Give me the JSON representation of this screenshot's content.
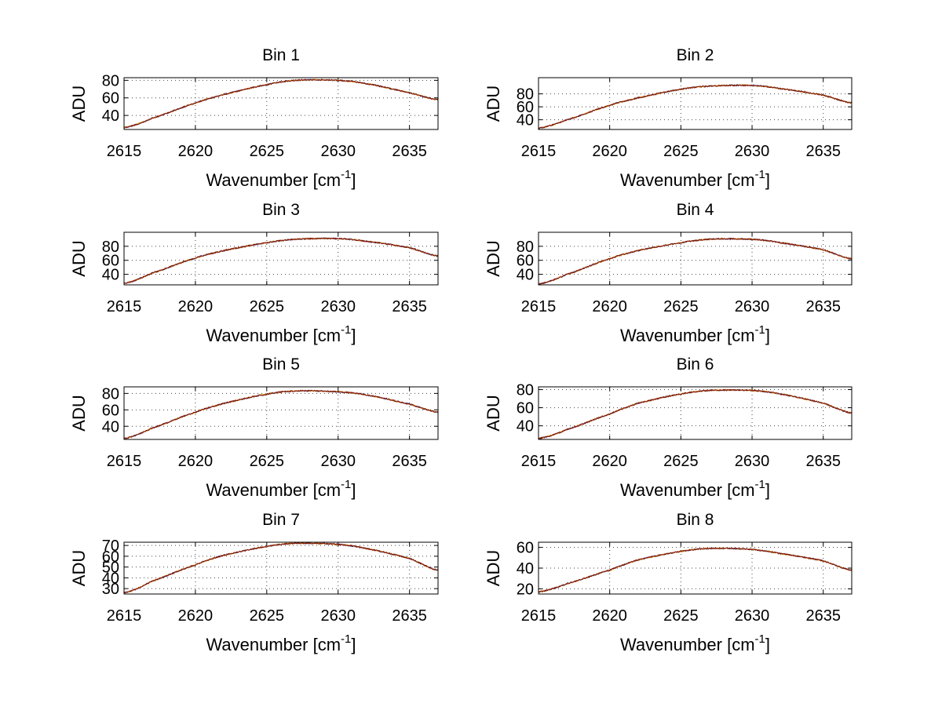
{
  "chart_data": [
    {
      "type": "line",
      "title": "Bin 1",
      "xlabel": "Wavenumber [cm",
      "xlabel_sup": "-1",
      "xlabel_end": "]",
      "ylabel": "ADU",
      "xlim": [
        2615,
        2637
      ],
      "ylim": [
        24,
        83
      ],
      "xticks": [
        2615,
        2620,
        2625,
        2630,
        2635
      ],
      "yticks": [
        40,
        60,
        80
      ],
      "curve": {
        "x": [
          2615,
          2617,
          2620,
          2622,
          2625,
          2627,
          2630,
          2632,
          2635,
          2637
        ],
        "y": [
          26,
          37,
          54,
          64,
          75,
          80,
          80,
          76,
          66,
          58
        ]
      }
    },
    {
      "type": "line",
      "title": "Bin 2",
      "xlabel": "Wavenumber [cm",
      "xlabel_sup": "-1",
      "xlabel_end": "]",
      "ylabel": "ADU",
      "xlim": [
        2615,
        2637
      ],
      "ylim": [
        25,
        105
      ],
      "xticks": [
        2615,
        2620,
        2625,
        2630,
        2635
      ],
      "yticks": [
        40,
        60,
        80
      ],
      "curve": {
        "x": [
          2615,
          2617,
          2620,
          2622,
          2625,
          2627,
          2630,
          2632,
          2635,
          2637
        ],
        "y": [
          27,
          40,
          62,
          74,
          87,
          92,
          93,
          88,
          78,
          66
        ]
      }
    },
    {
      "type": "line",
      "title": "Bin 3",
      "xlabel": "Wavenumber [cm",
      "xlabel_sup": "-1",
      "xlabel_end": "]",
      "ylabel": "ADU",
      "xlim": [
        2615,
        2637
      ],
      "ylim": [
        25,
        100
      ],
      "xticks": [
        2615,
        2620,
        2625,
        2630,
        2635
      ],
      "yticks": [
        40,
        60,
        80
      ],
      "curve": {
        "x": [
          2615,
          2617,
          2620,
          2622,
          2625,
          2627,
          2630,
          2632,
          2635,
          2637
        ],
        "y": [
          27,
          42,
          63,
          74,
          85,
          90,
          91,
          87,
          78,
          66
        ]
      }
    },
    {
      "type": "line",
      "title": "Bin 4",
      "xlabel": "Wavenumber [cm",
      "xlabel_sup": "-1",
      "xlabel_end": "]",
      "ylabel": "ADU",
      "xlim": [
        2615,
        2637
      ],
      "ylim": [
        25,
        100
      ],
      "xticks": [
        2615,
        2620,
        2625,
        2630,
        2635
      ],
      "yticks": [
        40,
        60,
        80
      ],
      "curve": {
        "x": [
          2615,
          2617,
          2620,
          2622,
          2625,
          2627,
          2630,
          2632,
          2635,
          2637
        ],
        "y": [
          26,
          40,
          62,
          74,
          85,
          90,
          90,
          85,
          75,
          62
        ]
      }
    },
    {
      "type": "line",
      "title": "Bin 5",
      "xlabel": "Wavenumber [cm",
      "xlabel_sup": "-1",
      "xlabel_end": "]",
      "ylabel": "ADU",
      "xlim": [
        2615,
        2637
      ],
      "ylim": [
        24,
        88
      ],
      "xticks": [
        2615,
        2620,
        2625,
        2630,
        2635
      ],
      "yticks": [
        40,
        60,
        80
      ],
      "curve": {
        "x": [
          2615,
          2617,
          2620,
          2622,
          2625,
          2627,
          2630,
          2632,
          2635,
          2637
        ],
        "y": [
          25,
          38,
          57,
          68,
          79,
          83,
          82,
          78,
          67,
          57
        ]
      }
    },
    {
      "type": "line",
      "title": "Bin 6",
      "xlabel": "Wavenumber [cm",
      "xlabel_sup": "-1",
      "xlabel_end": "]",
      "ylabel": "ADU",
      "xlim": [
        2615,
        2637
      ],
      "ylim": [
        25,
        83
      ],
      "xticks": [
        2615,
        2620,
        2625,
        2630,
        2635
      ],
      "yticks": [
        40,
        60,
        80
      ],
      "curve": {
        "x": [
          2615,
          2617,
          2620,
          2622,
          2625,
          2627,
          2630,
          2632,
          2635,
          2637
        ],
        "y": [
          26,
          36,
          53,
          65,
          75,
          79,
          79,
          75,
          65,
          54
        ]
      }
    },
    {
      "type": "line",
      "title": "Bin 7",
      "xlabel": "Wavenumber [cm",
      "xlabel_sup": "-1",
      "xlabel_end": "]",
      "ylabel": "ADU",
      "xlim": [
        2615,
        2637
      ],
      "ylim": [
        25,
        73
      ],
      "xticks": [
        2615,
        2620,
        2625,
        2630,
        2635
      ],
      "ytick_labels": [
        "30",
        "40",
        "50",
        "60",
        "70"
      ],
      "ytick_positions": [
        30,
        40,
        50,
        60,
        70
      ],
      "ytick_labels_shown": [
        "30",
        "40",
        "50",
        "60",
        "70"
      ],
      "curve": {
        "x": [
          2615,
          2617,
          2620,
          2622,
          2625,
          2627,
          2630,
          2632,
          2635,
          2637
        ],
        "y": [
          26,
          37,
          52,
          61,
          69,
          72,
          71,
          67,
          58,
          47
        ]
      }
    },
    {
      "type": "line",
      "title": "Bin 8",
      "xlabel": "Wavenumber [cm",
      "xlabel_sup": "-1",
      "xlabel_end": "]",
      "ylabel": "ADU",
      "xlim": [
        2615,
        2637
      ],
      "ylim": [
        15,
        65
      ],
      "xticks": [
        2615,
        2620,
        2625,
        2630,
        2635
      ],
      "yticks": [
        20,
        40,
        60
      ],
      "curve": {
        "x": [
          2615,
          2617,
          2620,
          2622,
          2625,
          2627,
          2630,
          2632,
          2635,
          2637
        ],
        "y": [
          17,
          25,
          38,
          48,
          56,
          59,
          58,
          54,
          47,
          38
        ]
      }
    }
  ],
  "colors": {
    "line_main": "#7a1010",
    "line_accent": "#f0a000",
    "line_alt": "#1a2a9a",
    "grid": "#444444",
    "axis": "#000000"
  }
}
